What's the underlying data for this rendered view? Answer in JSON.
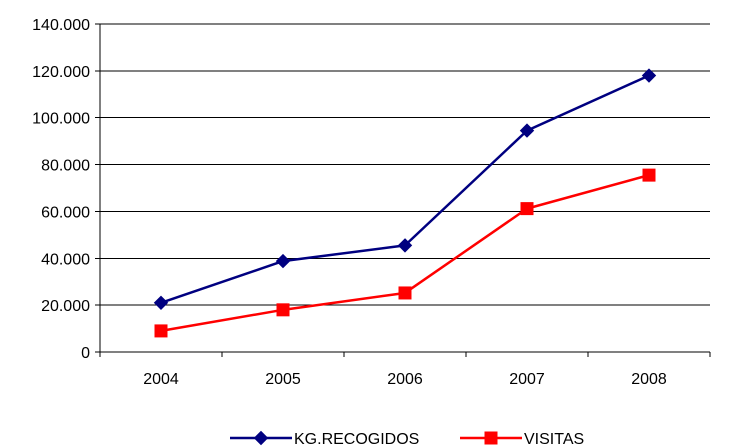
{
  "chart_data": {
    "type": "line",
    "categories": [
      "2004",
      "2005",
      "2006",
      "2007",
      "2008"
    ],
    "ylim": [
      0,
      140000
    ],
    "yticks": [
      0,
      20000,
      40000,
      60000,
      80000,
      100000,
      120000,
      140000
    ],
    "ytick_labels": [
      "0",
      "20.000",
      "40.000",
      "60.000",
      "80.000",
      "100.000",
      "120.000",
      "140.000"
    ],
    "grid": true,
    "legend": "bottom",
    "series": [
      {
        "name": "KG.RECOGIDOS",
        "values": [
          21000,
          38800,
          45500,
          94500,
          118000
        ],
        "color": "#000080",
        "marker": "diamond"
      },
      {
        "name": "VISITAS",
        "values": [
          9000,
          18000,
          25200,
          61200,
          75500
        ],
        "color": "#ff0000",
        "marker": "square"
      }
    ]
  }
}
